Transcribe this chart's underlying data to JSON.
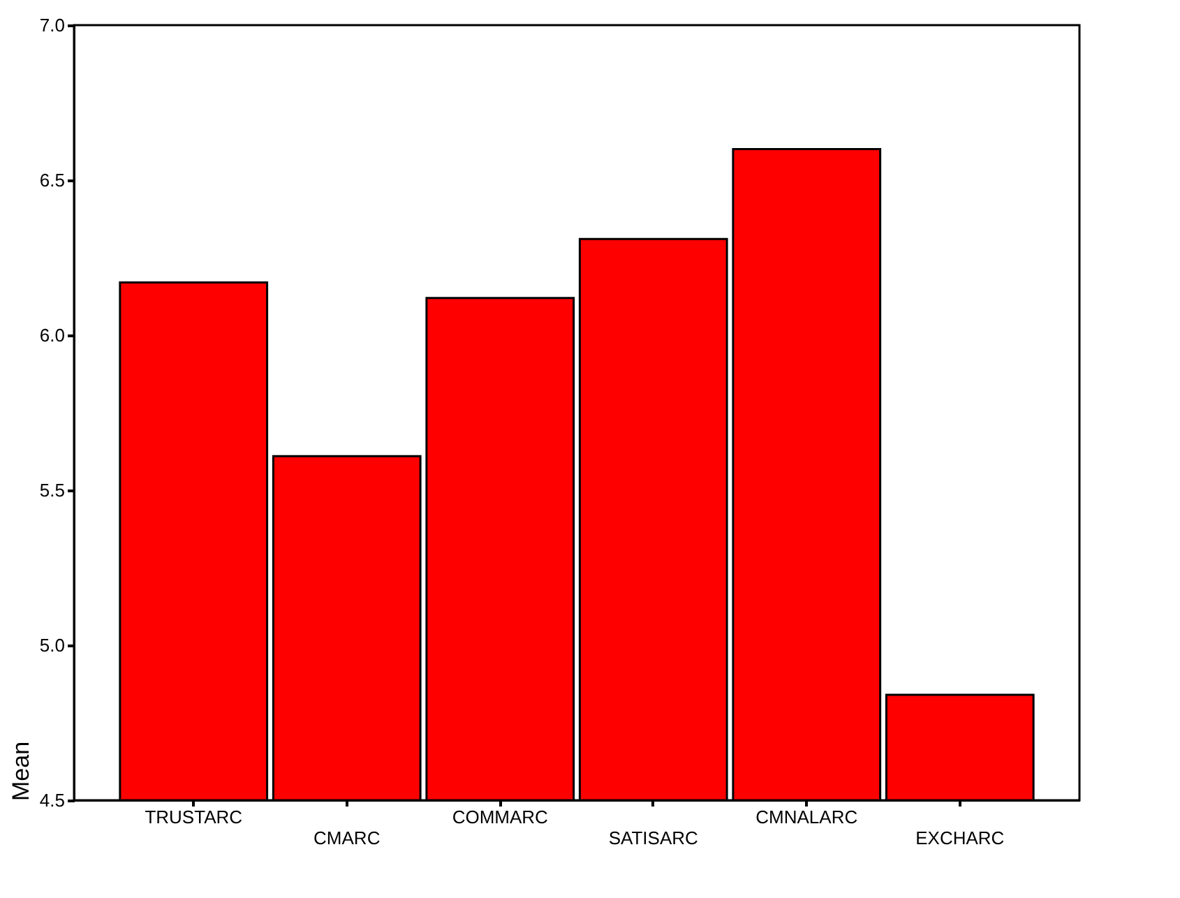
{
  "chart_data": {
    "type": "bar",
    "ylabel": "Mean",
    "categories": [
      "TRUSTARC",
      "CMARC",
      "COMMARC",
      "SATISARC",
      "CMNALARC",
      "EXCHARC"
    ],
    "values": [
      6.17,
      5.61,
      6.12,
      6.31,
      6.6,
      4.84
    ],
    "color": "#ff0000",
    "ylim": [
      4.5,
      7.0
    ],
    "yticks": [
      {
        "value": 4.5,
        "label": "4.5"
      },
      {
        "value": 5.0,
        "label": "5.0"
      },
      {
        "value": 5.5,
        "label": "5.5"
      },
      {
        "value": 6.0,
        "label": "6.0"
      },
      {
        "value": 6.5,
        "label": "6.5"
      },
      {
        "value": 7.0,
        "label": "7.0"
      }
    ],
    "grid": false
  }
}
